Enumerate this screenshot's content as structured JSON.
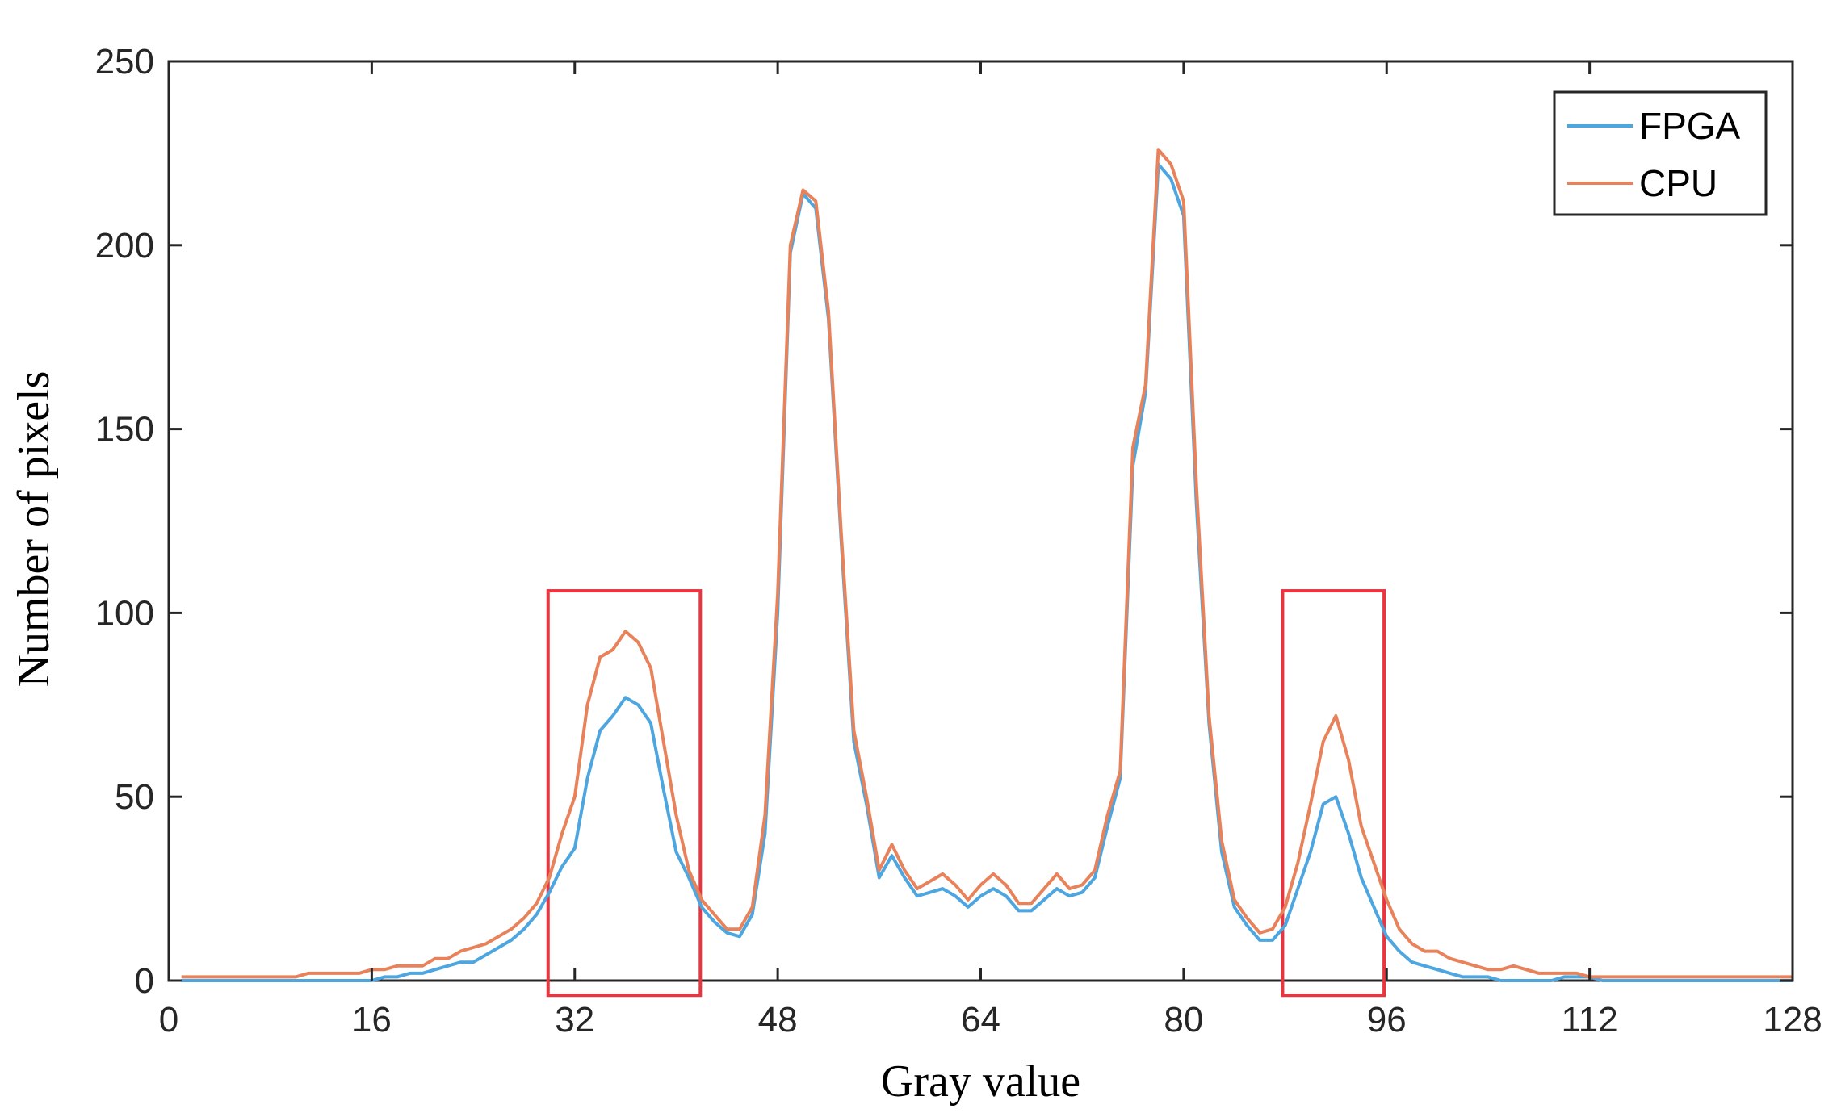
{
  "chart_data": {
    "type": "line",
    "title": "",
    "xlabel": "Gray value",
    "ylabel": "Number of pixels",
    "xlim": [
      0,
      128
    ],
    "ylim": [
      0,
      250
    ],
    "xticks": [
      0,
      16,
      32,
      48,
      64,
      80,
      96,
      112,
      128
    ],
    "yticks": [
      0,
      50,
      100,
      150,
      200,
      250
    ],
    "grid": false,
    "legend": {
      "placement": "top-right",
      "entries": [
        "FPGA",
        "CPU"
      ]
    },
    "series": [
      {
        "name": "FPGA",
        "color": "#4da6e0",
        "x": [
          1,
          2,
          3,
          4,
          5,
          6,
          7,
          8,
          9,
          10,
          11,
          12,
          13,
          14,
          15,
          16,
          17,
          18,
          19,
          20,
          21,
          22,
          23,
          24,
          25,
          26,
          27,
          28,
          29,
          30,
          31,
          32,
          33,
          34,
          35,
          36,
          37,
          38,
          39,
          40,
          41,
          42,
          43,
          44,
          45,
          46,
          47,
          48,
          49,
          50,
          51,
          52,
          53,
          54,
          55,
          56,
          57,
          58,
          59,
          60,
          61,
          62,
          63,
          64,
          65,
          66,
          67,
          68,
          69,
          70,
          71,
          72,
          73,
          74,
          75,
          76,
          77,
          78,
          79,
          80,
          81,
          82,
          83,
          84,
          85,
          86,
          87,
          88,
          89,
          90,
          91,
          92,
          93,
          94,
          95,
          96,
          97,
          98,
          99,
          100,
          101,
          102,
          103,
          104,
          105,
          106,
          107,
          108,
          109,
          110,
          111,
          112,
          113,
          114,
          115,
          116,
          117,
          118,
          119,
          120,
          121,
          122,
          123,
          124,
          125,
          126,
          127,
          128
        ],
        "values": [
          0,
          0,
          0,
          0,
          0,
          0,
          0,
          0,
          0,
          0,
          0,
          0,
          0,
          0,
          0,
          0,
          1,
          1,
          2,
          2,
          3,
          4,
          5,
          5,
          7,
          9,
          11,
          14,
          18,
          24,
          31,
          36,
          55,
          68,
          72,
          77,
          75,
          70,
          52,
          35,
          28,
          20,
          16,
          13,
          12,
          18,
          40,
          100,
          198,
          214,
          210,
          180,
          120,
          65,
          48,
          28,
          34,
          28,
          23,
          24,
          25,
          23,
          20,
          23,
          25,
          23,
          19,
          19,
          22,
          25,
          23,
          24,
          28,
          42,
          55,
          140,
          160,
          222,
          218,
          208,
          130,
          70,
          35,
          20,
          15,
          11,
          11,
          15,
          25,
          35,
          48,
          50,
          40,
          28,
          20,
          12,
          8,
          5,
          4,
          3,
          2,
          1,
          1,
          1,
          0,
          0,
          0,
          0,
          0,
          1,
          1,
          1,
          0,
          0,
          0,
          0,
          0,
          0,
          0,
          0,
          0,
          0,
          0,
          0,
          0,
          0,
          0,
          0
        ]
      },
      {
        "name": "CPU",
        "color": "#e8825a",
        "x": [
          1,
          2,
          3,
          4,
          5,
          6,
          7,
          8,
          9,
          10,
          11,
          12,
          13,
          14,
          15,
          16,
          17,
          18,
          19,
          20,
          21,
          22,
          23,
          24,
          25,
          26,
          27,
          28,
          29,
          30,
          31,
          32,
          33,
          34,
          35,
          36,
          37,
          38,
          39,
          40,
          41,
          42,
          43,
          44,
          45,
          46,
          47,
          48,
          49,
          50,
          51,
          52,
          53,
          54,
          55,
          56,
          57,
          58,
          59,
          60,
          61,
          62,
          63,
          64,
          65,
          66,
          67,
          68,
          69,
          70,
          71,
          72,
          73,
          74,
          75,
          76,
          77,
          78,
          79,
          80,
          81,
          82,
          83,
          84,
          85,
          86,
          87,
          88,
          89,
          90,
          91,
          92,
          93,
          94,
          95,
          96,
          97,
          98,
          99,
          100,
          101,
          102,
          103,
          104,
          105,
          106,
          107,
          108,
          109,
          110,
          111,
          112,
          113,
          114,
          115,
          116,
          117,
          118,
          119,
          120,
          121,
          122,
          123,
          124,
          125,
          126,
          127,
          128
        ],
        "values": [
          1,
          1,
          1,
          1,
          1,
          1,
          1,
          1,
          1,
          1,
          2,
          2,
          2,
          2,
          2,
          3,
          3,
          4,
          4,
          4,
          6,
          6,
          8,
          9,
          10,
          12,
          14,
          17,
          21,
          28,
          40,
          50,
          75,
          88,
          90,
          95,
          92,
          85,
          65,
          45,
          30,
          22,
          18,
          14,
          14,
          20,
          45,
          105,
          200,
          215,
          212,
          182,
          122,
          68,
          50,
          30,
          37,
          30,
          25,
          27,
          29,
          26,
          22,
          26,
          29,
          26,
          21,
          21,
          25,
          29,
          25,
          26,
          30,
          45,
          57,
          145,
          162,
          226,
          222,
          212,
          135,
          72,
          38,
          22,
          17,
          13,
          14,
          20,
          32,
          48,
          65,
          72,
          60,
          42,
          32,
          22,
          14,
          10,
          8,
          8,
          6,
          5,
          4,
          3,
          3,
          4,
          3,
          2,
          2,
          2,
          2,
          1,
          1,
          1,
          1,
          1,
          1,
          1,
          1,
          1,
          1,
          1,
          1,
          1,
          1,
          1,
          1,
          1
        ]
      }
    ],
    "annotations": [
      {
        "type": "highlight-box",
        "color": "#e8353f",
        "x_range": [
          29.9,
          41.9
        ],
        "y_range": [
          -4,
          106
        ]
      },
      {
        "type": "highlight-box",
        "color": "#e8353f",
        "x_range": [
          87.8,
          95.8
        ],
        "y_range": [
          -4,
          106
        ]
      }
    ]
  }
}
